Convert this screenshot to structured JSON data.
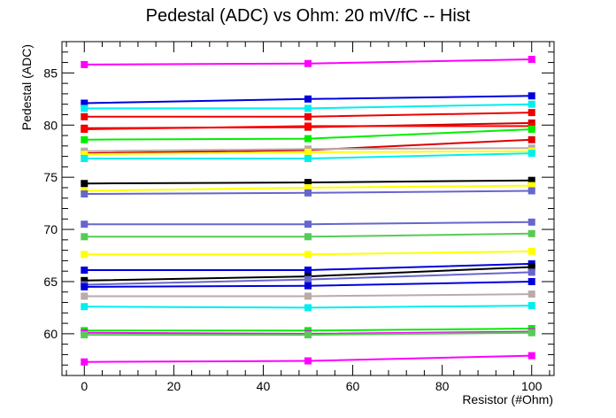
{
  "chart_data": {
    "type": "line",
    "title": "Pedestal (ADC) vs Ohm: 20 mV/fC -- Hist",
    "xlabel": "Resistor (#Ohm)",
    "ylabel": "Pedestal (ADC)",
    "xlim": [
      -5,
      105
    ],
    "ylim": [
      56,
      88
    ],
    "x_ticks": [
      0,
      20,
      40,
      60,
      80,
      100
    ],
    "y_ticks": [
      60,
      65,
      70,
      75,
      80,
      85
    ],
    "x": [
      0,
      50,
      100
    ],
    "grid": false,
    "legend": "none",
    "series": [
      {
        "color": "#ff00ff",
        "values": [
          85.8,
          85.9,
          86.3
        ]
      },
      {
        "color": "#0000dd",
        "values": [
          82.1,
          82.5,
          82.8
        ]
      },
      {
        "color": "#00eeee",
        "values": [
          81.6,
          81.6,
          82.0
        ]
      },
      {
        "color": "#ee0000",
        "values": [
          80.8,
          80.8,
          81.2
        ]
      },
      {
        "color": "#cc0000",
        "values": [
          79.7,
          79.8,
          80.2
        ]
      },
      {
        "color": "#ff0000",
        "values": [
          79.6,
          79.9,
          79.9
        ]
      },
      {
        "color": "#00ee00",
        "values": [
          78.6,
          78.7,
          79.6
        ]
      },
      {
        "color": "#dd0000",
        "values": [
          77.3,
          77.6,
          78.6
        ]
      },
      {
        "color": "#bbaaaa",
        "values": [
          77.5,
          77.7,
          77.8
        ]
      },
      {
        "color": "#ffff00",
        "values": [
          77.2,
          77.4,
          77.5
        ]
      },
      {
        "color": "#00eeee",
        "values": [
          76.8,
          76.8,
          77.3
        ]
      },
      {
        "color": "#000000",
        "values": [
          74.4,
          74.5,
          74.7
        ]
      },
      {
        "color": "#ffff00",
        "values": [
          73.7,
          74.0,
          74.2
        ]
      },
      {
        "color": "#6666cc",
        "values": [
          73.4,
          73.5,
          73.7
        ]
      },
      {
        "color": "#6666cc",
        "values": [
          70.5,
          70.5,
          70.7
        ]
      },
      {
        "color": "#55cc55",
        "values": [
          69.3,
          69.3,
          69.6
        ]
      },
      {
        "color": "#ffff00",
        "values": [
          67.6,
          67.6,
          67.9
        ]
      },
      {
        "color": "#0000dd",
        "values": [
          66.1,
          66.1,
          66.7
        ]
      },
      {
        "color": "#000000",
        "values": [
          65.1,
          65.5,
          66.4
        ]
      },
      {
        "color": "#6666cc",
        "values": [
          64.7,
          65.2,
          65.9
        ]
      },
      {
        "color": "#0000dd",
        "values": [
          64.5,
          64.6,
          65.0
        ]
      },
      {
        "color": "#bbaaaa",
        "values": [
          63.6,
          63.6,
          63.8
        ]
      },
      {
        "color": "#00eeee",
        "values": [
          62.6,
          62.5,
          62.7
        ]
      },
      {
        "color": "#00ee00",
        "values": [
          60.3,
          60.3,
          60.5
        ]
      },
      {
        "color": "#ff00ff",
        "values": [
          60.1,
          60.0,
          60.2
        ]
      },
      {
        "color": "#55cc55",
        "values": [
          59.9,
          59.9,
          60.1
        ]
      },
      {
        "color": "#ff00ff",
        "values": [
          57.3,
          57.4,
          57.9
        ]
      }
    ]
  }
}
